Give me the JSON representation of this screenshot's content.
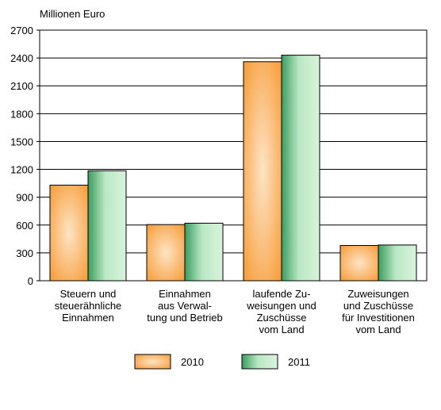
{
  "chart_data": {
    "type": "bar",
    "unit_label": "Millionen  Euro",
    "ylim": [
      0,
      2700
    ],
    "yticks": [
      "0",
      "300",
      "600",
      "900",
      "1200",
      "1500",
      "1800",
      "2100",
      "2400",
      "2700"
    ],
    "grid": true,
    "legend_position": "bottom",
    "categories": [
      [
        "Steuern und",
        "steuerähnliche",
        "Einnahmen"
      ],
      [
        "Einnahmen",
        "aus Verwal-",
        "tung und Betrieb"
      ],
      [
        "laufende Zu-",
        "weisungen und",
        "Zuschüsse",
        "vom Land"
      ],
      [
        "Zuweisungen",
        "und Zuschüsse",
        "für Investitionen",
        "vom Land"
      ]
    ],
    "series": [
      {
        "name": "2010",
        "color": "#f7962b",
        "values": [
          1030,
          605,
          2360,
          380
        ]
      },
      {
        "name": "2011",
        "color": "#3faa6a",
        "values": [
          1185,
          620,
          2430,
          385
        ]
      }
    ]
  }
}
